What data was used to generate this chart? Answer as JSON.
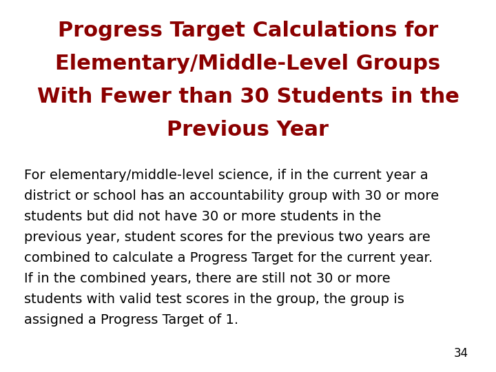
{
  "title_lines": [
    "Progress Target Calculations for",
    "Elementary/Middle-Level Groups",
    "With Fewer than 30 Students in the",
    "Previous Year"
  ],
  "title_color": "#8B0000",
  "title_fontsize": 22,
  "body_text_lines": [
    "For elementary/middle-level science, if in the current year a",
    "district or school has an accountability group with 30 or more",
    "students but did not have 30 or more students in the",
    "previous year, student scores for the previous two years are",
    "combined to calculate a Progress Target for the current year.",
    "If in the combined years, there are still not 30 or more",
    "students with valid test scores in the group, the group is",
    "assigned a Progress Target of 1."
  ],
  "body_color": "#000000",
  "body_fontsize": 14,
  "page_number": "34",
  "page_number_color": "#000000",
  "page_number_fontsize": 12,
  "background_color": "#ffffff"
}
